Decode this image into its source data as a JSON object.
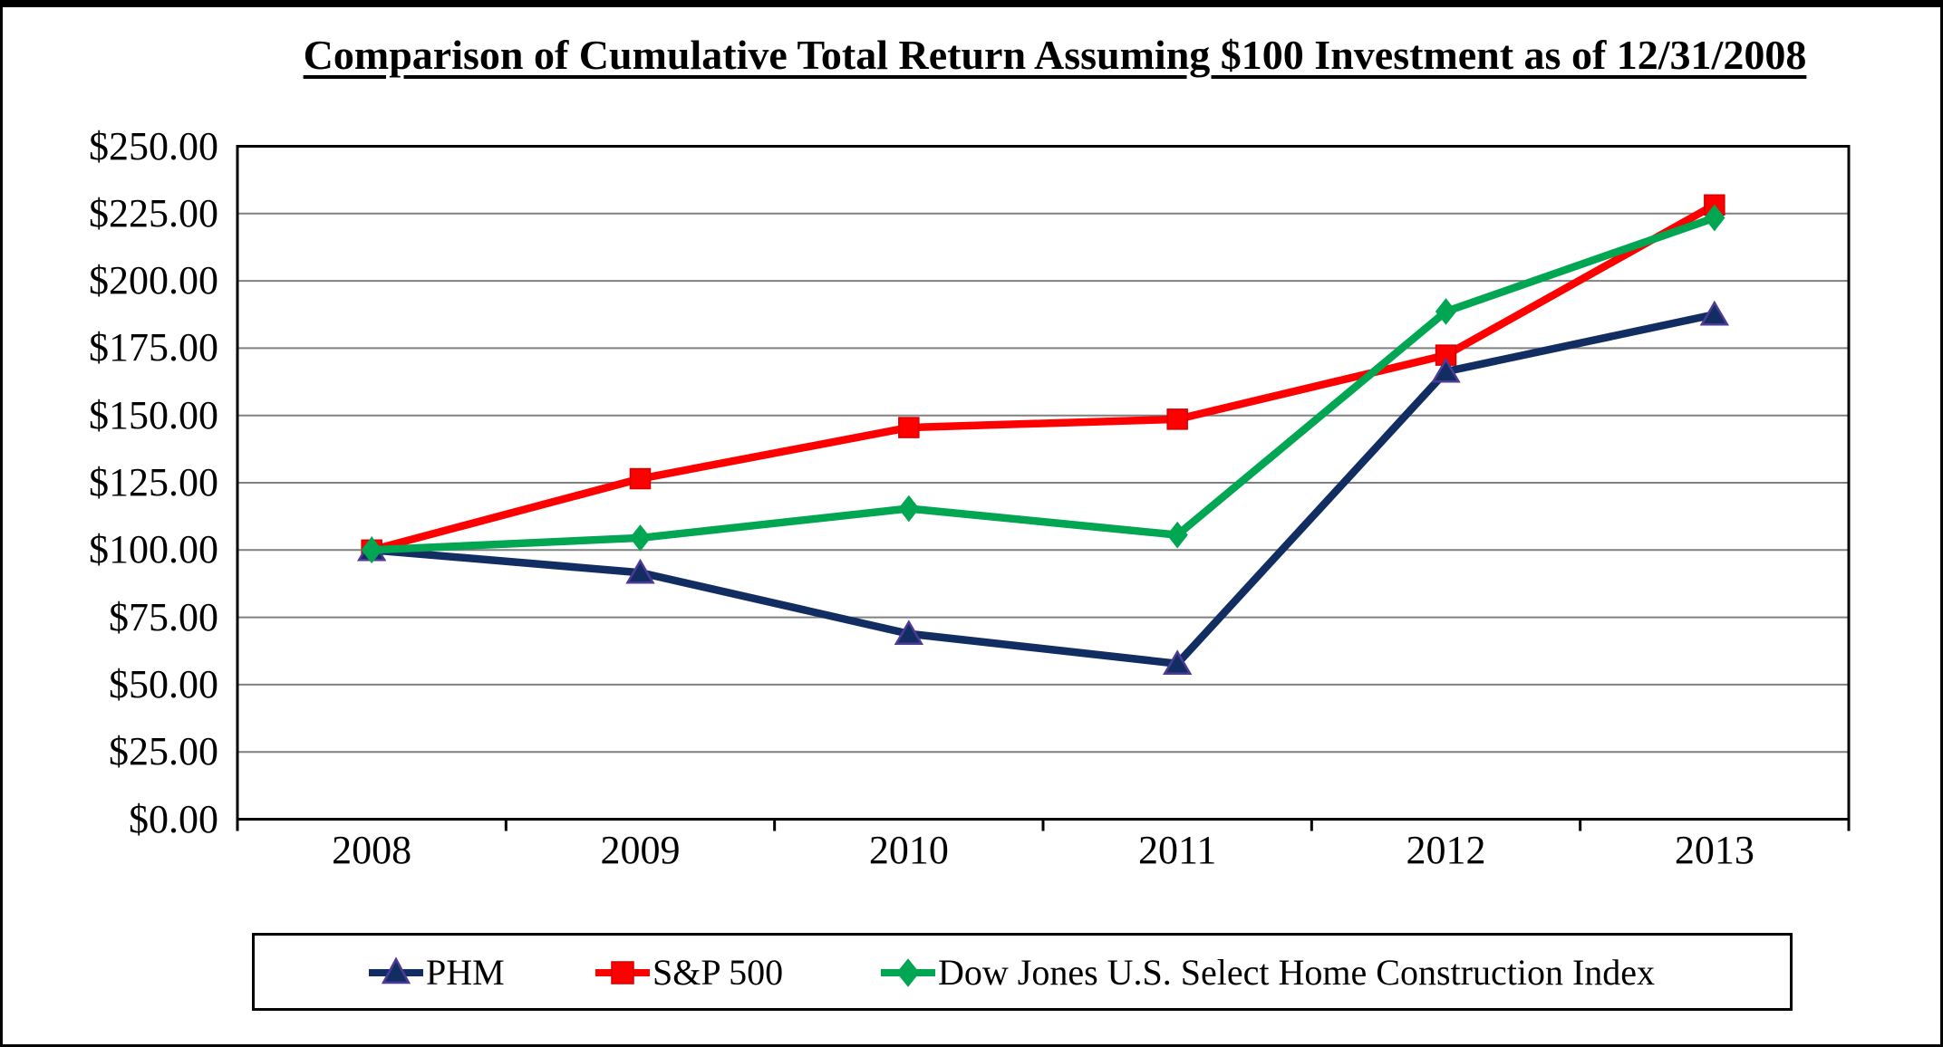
{
  "title": "Comparison of Cumulative Total Return Assuming $100 Investment as of 12/31/2008",
  "chart_data": {
    "type": "line",
    "categories": [
      "2008",
      "2009",
      "2010",
      "2011",
      "2012",
      "2013"
    ],
    "series": [
      {
        "id": "phm",
        "name": "PHM",
        "values": [
          100.0,
          91.6,
          68.9,
          57.8,
          166.3,
          187.5
        ],
        "color": "#112D62",
        "marker": "triangle",
        "marker_border": "#4F3A97"
      },
      {
        "id": "sp500",
        "name": "S&P 500",
        "values": [
          100.0,
          126.5,
          145.5,
          148.6,
          172.4,
          228.2
        ],
        "color": "#FF0000",
        "marker": "square",
        "marker_border": "#D40000"
      },
      {
        "id": "dj-home-construction",
        "name": "Dow Jones U.S. Select Home Construction Index",
        "values": [
          100.0,
          104.5,
          115.4,
          105.6,
          188.6,
          223.4
        ],
        "color": "#00A651",
        "marker": "diamond",
        "marker_border": "#00A651"
      }
    ],
    "xlabel": "",
    "ylabel": "",
    "ylim": [
      0,
      250
    ],
    "y_step": 25,
    "y_ticks": [
      "$0.00",
      "$25.00",
      "$50.00",
      "$75.00",
      "$100.00",
      "$125.00",
      "$150.00",
      "$175.00",
      "$200.00",
      "$225.00",
      "$250.00"
    ],
    "grid": "horizontal",
    "gridline_color": "#808080",
    "axis_color": "#000000",
    "legend_position": "bottom"
  }
}
